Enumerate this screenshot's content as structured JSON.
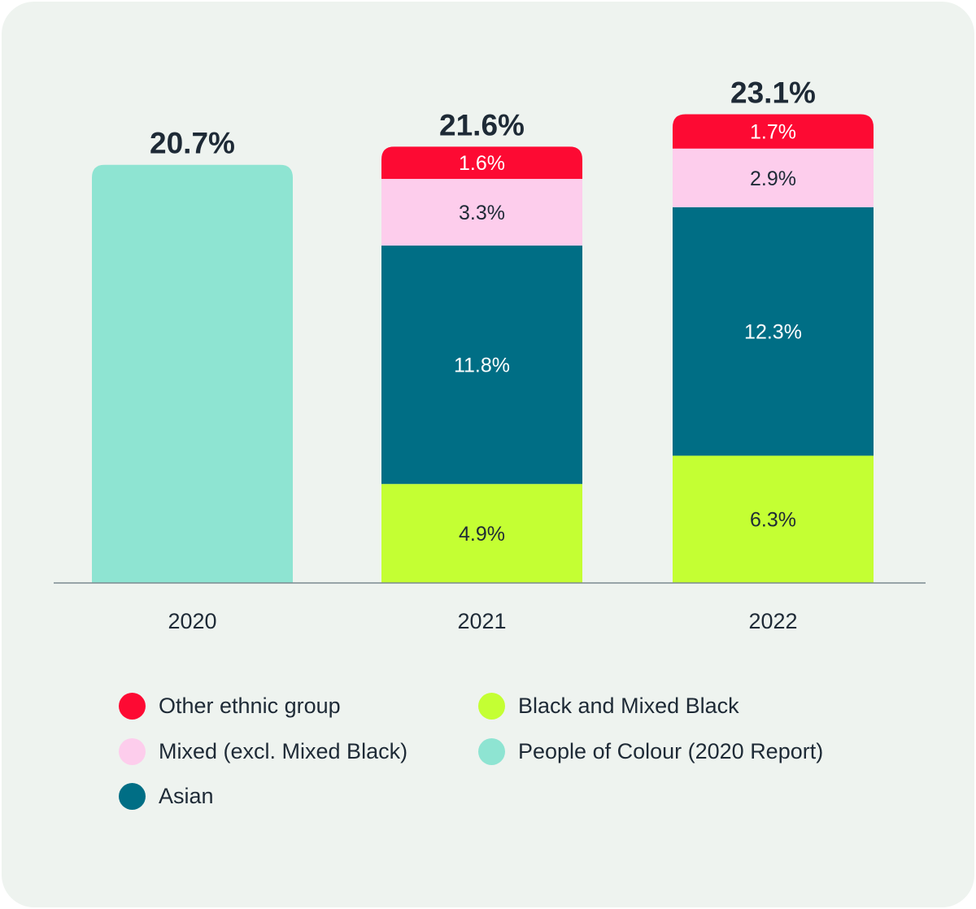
{
  "chart_data": {
    "type": "bar",
    "stacked": true,
    "categories": [
      "2020",
      "2021",
      "2022"
    ],
    "series": [
      {
        "name": "Black and Mixed Black",
        "key": "black",
        "color": "#c4ff33",
        "label_color": "#1e2a36",
        "values": [
          null,
          4.9,
          6.3
        ]
      },
      {
        "name": "Asian",
        "key": "asian",
        "color": "#006e85",
        "label_color": "#ffffff",
        "values": [
          null,
          11.8,
          12.3
        ]
      },
      {
        "name": "Mixed (excl. Mixed Black)",
        "key": "mixed",
        "color": "#fdcdec",
        "label_color": "#1e2a36",
        "values": [
          null,
          3.3,
          2.9
        ]
      },
      {
        "name": "Other ethnic group",
        "key": "other",
        "color": "#fd0a33",
        "label_color": "#ffffff",
        "values": [
          null,
          1.6,
          1.7
        ]
      },
      {
        "name": "People of Colour (2020 Report)",
        "key": "poc",
        "color": "#8ee4d2",
        "label_color": "#1e2a36",
        "values": [
          20.7,
          null,
          null
        ]
      }
    ],
    "data_labels": {
      "2021": {
        "black": "4.9%",
        "asian": "11.8%",
        "mixed": "3.3%",
        "other": "1.6%"
      },
      "2022": {
        "black": "6.3%",
        "asian": "12.3%",
        "mixed": "2.9%",
        "other": "1.7%"
      }
    },
    "totals": [
      "20.7%",
      "21.6%",
      "23.1%"
    ],
    "ylim": [
      0,
      23.1
    ],
    "grid": false,
    "legend": {
      "position": "bottom",
      "items": [
        {
          "label": "Other ethnic group",
          "color": "#fd0a33"
        },
        {
          "label": "Black and Mixed Black",
          "color": "#c4ff33"
        },
        {
          "label": "Mixed (excl. Mixed Black)",
          "color": "#fdcdec"
        },
        {
          "label": "People of Colour (2020 Report)",
          "color": "#8ee4d2"
        },
        {
          "label": "Asian",
          "color": "#006e85"
        }
      ]
    },
    "colors": {
      "background": "#eef3ef",
      "axis": "#7a8a90",
      "text": "#1e2a36"
    }
  }
}
